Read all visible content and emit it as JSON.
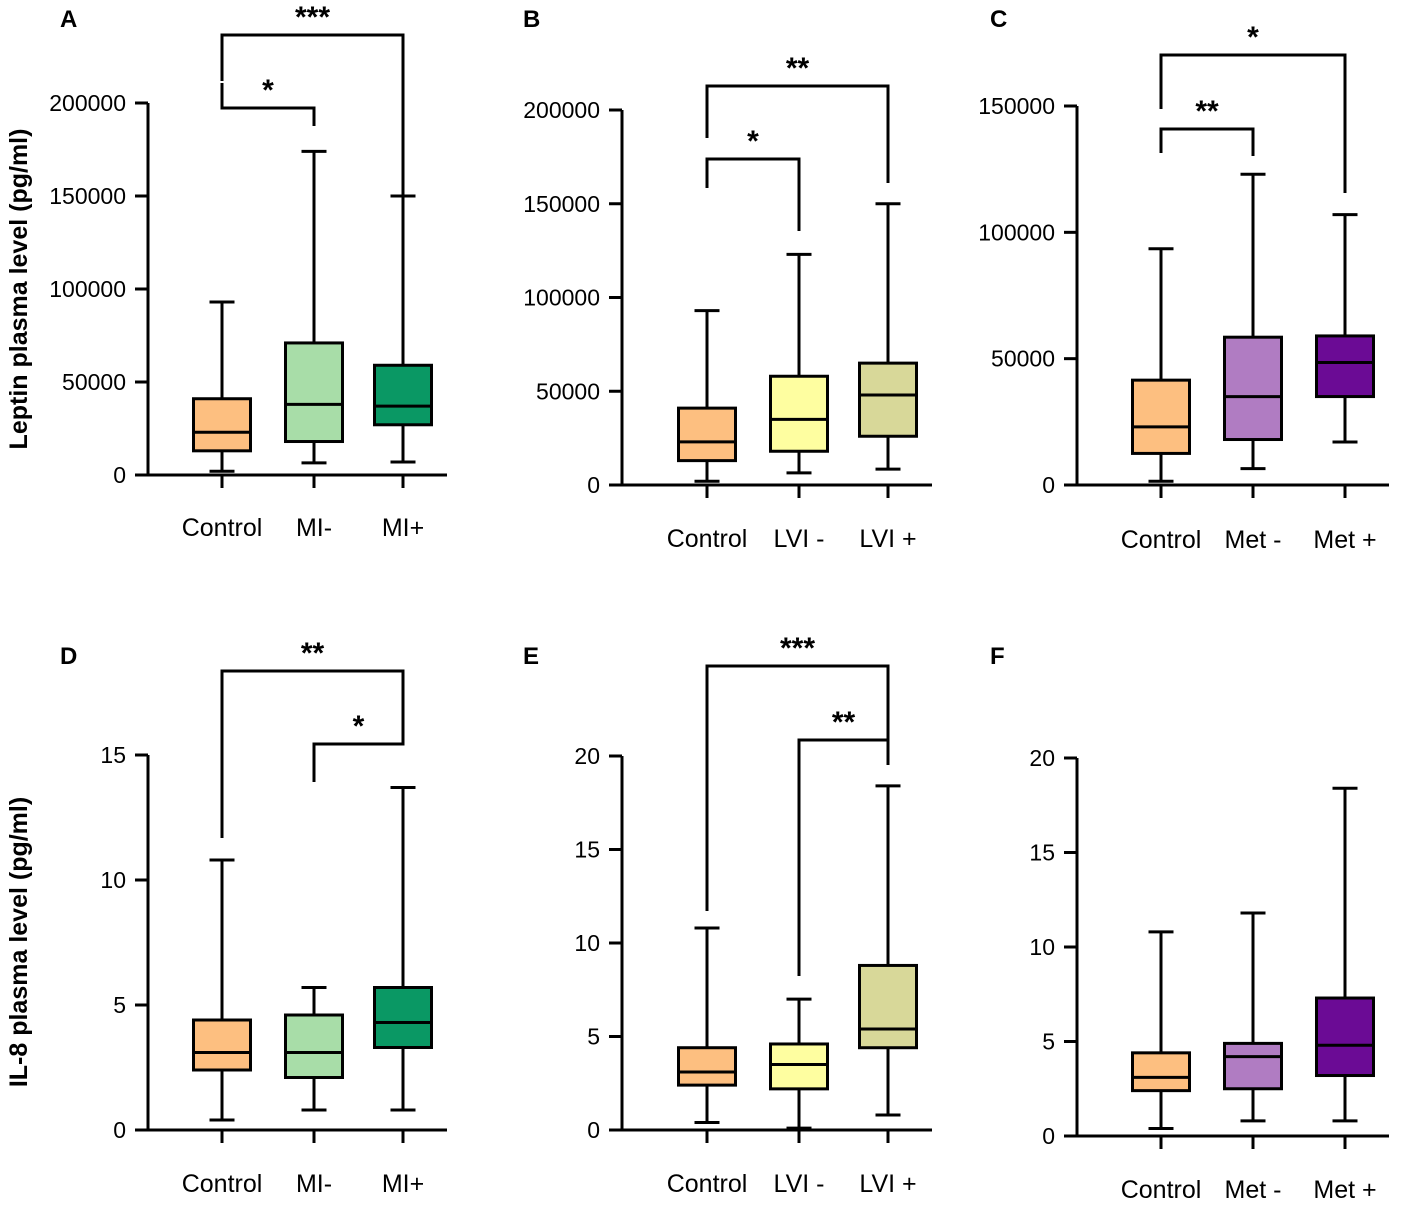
{
  "figure": {
    "background": "#ffffff"
  },
  "y_axis_titles": {
    "top_row": "Leptin plasma level (pg/ml)",
    "bottom_row": "IL-8 plasma level (pg/ml)"
  },
  "chart_data": [
    {
      "panel": "A",
      "type": "box",
      "ylabel": "Leptin plasma level (pg/ml)",
      "ylim": [
        0,
        200000
      ],
      "yticks": [
        0,
        50000,
        100000,
        150000,
        200000
      ],
      "ytick_labels": [
        "0",
        "50000",
        "100000",
        "150000",
        "200000"
      ],
      "categories": [
        "Control",
        "MI-",
        "MI+"
      ],
      "colors": [
        "#FDBF80",
        "#A8DDA8",
        "#0A9864"
      ],
      "boxes": [
        {
          "min": 2000,
          "q1": 13000,
          "median": 23000,
          "q3": 41000,
          "max": 93000
        },
        {
          "min": 6500,
          "q1": 18000,
          "median": 38000,
          "q3": 71000,
          "max": 174000
        },
        {
          "min": 7000,
          "q1": 27000,
          "median": 37000,
          "q3": 59000,
          "max": 150000
        }
      ],
      "significance": [
        {
          "from": "Control",
          "to": "MI-",
          "label": "*"
        },
        {
          "from": "Control",
          "to": "MI+",
          "label": "***"
        }
      ]
    },
    {
      "panel": "B",
      "type": "box",
      "ylabel": "",
      "ylim": [
        0,
        200000
      ],
      "yticks": [
        0,
        50000,
        100000,
        150000,
        200000
      ],
      "ytick_labels": [
        "0",
        "50000",
        "100000",
        "150000",
        "200000"
      ],
      "categories": [
        "Control",
        "LVI -",
        "LVI +"
      ],
      "colors": [
        "#FDBF80",
        "#FEFEA0",
        "#D8D899"
      ],
      "boxes": [
        {
          "min": 2000,
          "q1": 13000,
          "median": 23000,
          "q3": 41000,
          "max": 93000
        },
        {
          "min": 6500,
          "q1": 18000,
          "median": 35000,
          "q3": 58000,
          "max": 123000
        },
        {
          "min": 8500,
          "q1": 26000,
          "median": 48000,
          "q3": 65000,
          "max": 150000
        }
      ],
      "significance": [
        {
          "from": "Control",
          "to": "LVI -",
          "label": "*"
        },
        {
          "from": "Control",
          "to": "LVI +",
          "label": "**"
        }
      ]
    },
    {
      "panel": "C",
      "type": "box",
      "ylabel": "",
      "ylim": [
        0,
        150000
      ],
      "yticks": [
        0,
        50000,
        100000,
        150000
      ],
      "ytick_labels": [
        "0",
        "50000",
        "100000",
        "150000"
      ],
      "categories": [
        "Control",
        "Met -",
        "Met +"
      ],
      "colors": [
        "#FDBF80",
        "#B07CC2",
        "#6B0B95"
      ],
      "boxes": [
        {
          "min": 1500,
          "q1": 12500,
          "median": 23000,
          "q3": 41500,
          "max": 93500
        },
        {
          "min": 6500,
          "q1": 18000,
          "median": 35000,
          "q3": 58500,
          "max": 123000
        },
        {
          "min": 17000,
          "q1": 35000,
          "median": 48500,
          "q3": 59000,
          "max": 107000
        }
      ],
      "significance": [
        {
          "from": "Control",
          "to": "Met -",
          "label": "**"
        },
        {
          "from": "Control",
          "to": "Met +",
          "label": "*"
        }
      ]
    },
    {
      "panel": "D",
      "type": "box",
      "ylabel": "IL-8 plasma level (pg/ml)",
      "ylim": [
        0,
        15
      ],
      "yticks": [
        0,
        5,
        10,
        15
      ],
      "ytick_labels": [
        "0",
        "5",
        "10",
        "15"
      ],
      "categories": [
        "Control",
        "MI-",
        "MI+"
      ],
      "colors": [
        "#FDBF80",
        "#A8DDA8",
        "#0A9864"
      ],
      "boxes": [
        {
          "min": 0.4,
          "q1": 2.4,
          "median": 3.1,
          "q3": 4.4,
          "max": 10.8
        },
        {
          "min": 0.8,
          "q1": 2.1,
          "median": 3.1,
          "q3": 4.6,
          "max": 5.7
        },
        {
          "min": 0.8,
          "q1": 3.3,
          "median": 4.3,
          "q3": 5.7,
          "max": 13.7
        }
      ],
      "significance": [
        {
          "from": "MI-",
          "to": "MI+",
          "label": "*"
        },
        {
          "from": "Control",
          "to": "MI+",
          "label": "**"
        }
      ]
    },
    {
      "panel": "E",
      "type": "box",
      "ylabel": "",
      "ylim": [
        0,
        20
      ],
      "yticks": [
        0,
        5,
        10,
        15,
        20
      ],
      "ytick_labels": [
        "0",
        "5",
        "10",
        "15",
        "20"
      ],
      "categories": [
        "Control",
        "LVI -",
        "LVI +"
      ],
      "colors": [
        "#FDBF80",
        "#FEFEA0",
        "#D8D899"
      ],
      "boxes": [
        {
          "min": 0.4,
          "q1": 2.4,
          "median": 3.1,
          "q3": 4.4,
          "max": 10.8
        },
        {
          "min": 0.1,
          "q1": 2.2,
          "median": 3.5,
          "q3": 4.6,
          "max": 7.0
        },
        {
          "min": 0.8,
          "q1": 4.4,
          "median": 5.4,
          "q3": 8.8,
          "max": 18.4
        }
      ],
      "significance": [
        {
          "from": "LVI -",
          "to": "LVI +",
          "label": "**"
        },
        {
          "from": "Control",
          "to": "LVI +",
          "label": "***"
        }
      ]
    },
    {
      "panel": "F",
      "type": "box",
      "ylabel": "",
      "ylim": [
        0,
        20
      ],
      "yticks": [
        0,
        5,
        10,
        15,
        20
      ],
      "ytick_labels": [
        "0",
        "5",
        "10",
        "15",
        "20"
      ],
      "categories": [
        "Control",
        "Met -",
        "Met +"
      ],
      "colors": [
        "#FDBF80",
        "#B07CC2",
        "#6B0B95"
      ],
      "boxes": [
        {
          "min": 0.4,
          "q1": 2.4,
          "median": 3.1,
          "q3": 4.4,
          "max": 10.8
        },
        {
          "min": 0.8,
          "q1": 2.5,
          "median": 4.2,
          "q3": 4.9,
          "max": 11.8
        },
        {
          "min": 0.8,
          "q1": 3.2,
          "median": 4.8,
          "q3": 7.3,
          "max": 18.4
        }
      ],
      "significance": []
    }
  ]
}
